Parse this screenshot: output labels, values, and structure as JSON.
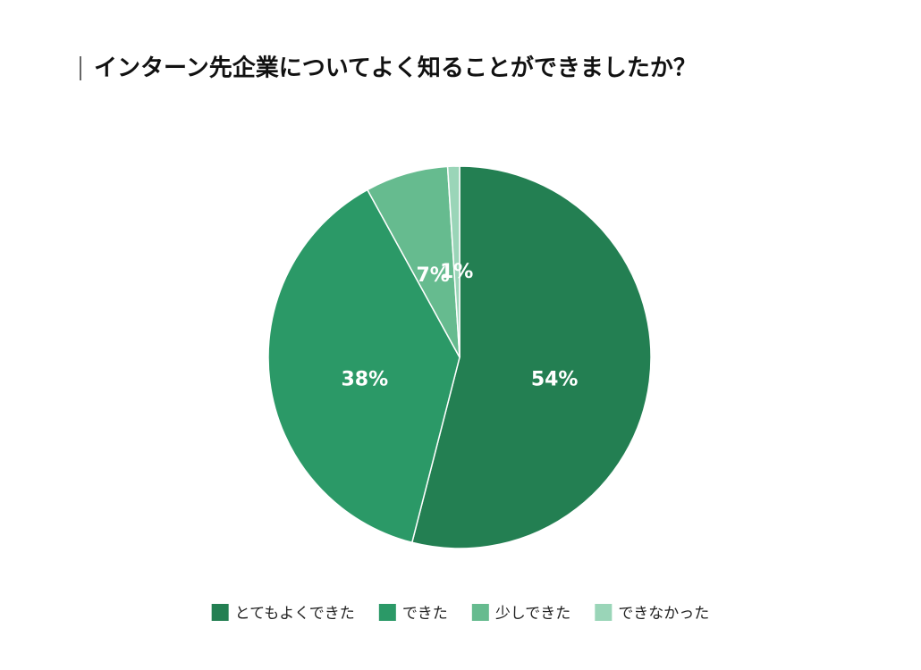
{
  "chart_data": {
    "type": "pie",
    "title": "インターン先企業についてよく知ることができましたか？",
    "categories": [
      "とてもよくできた",
      "できた",
      "少しできた",
      "できなかった"
    ],
    "values": [
      54,
      38,
      7,
      1
    ],
    "value_labels": [
      "54%",
      "38%",
      "7%",
      "1%"
    ],
    "colors": [
      "#237f52",
      "#2b9967",
      "#66bb8f",
      "#9ad5b8"
    ],
    "legend": "bottom"
  }
}
